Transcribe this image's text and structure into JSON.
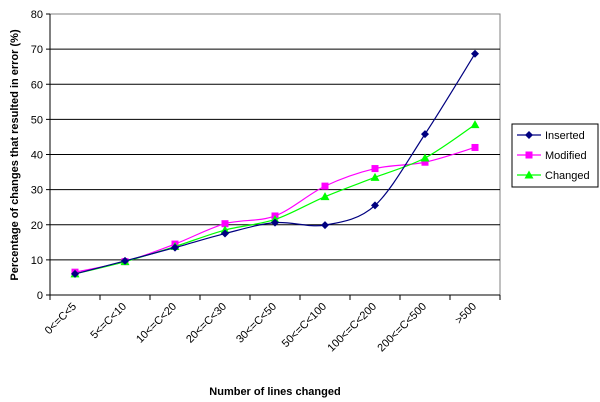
{
  "chart_data": {
    "type": "line",
    "xlabel": "Number of lines changed",
    "ylabel": "Percentage of changes that resulted in error (%)",
    "ylim": [
      0,
      80
    ],
    "yticks": [
      0,
      10,
      20,
      30,
      40,
      50,
      60,
      70,
      80
    ],
    "grid": "horizontal",
    "legend_position": "right",
    "categories": [
      "0<=C<5",
      "5<=C<10",
      "10<=C<20",
      "20<=C<30",
      "30<=C<50",
      "50<=C<100",
      "100<=C<200",
      "200<=C<500",
      ">500"
    ],
    "series": [
      {
        "name": "Inserted",
        "color": "#000080",
        "marker": "diamond",
        "values": [
          6.0,
          9.7,
          13.5,
          17.5,
          20.6,
          19.9,
          25.5,
          45.8,
          68.7
        ]
      },
      {
        "name": "Modified",
        "color": "#FF00FF",
        "marker": "square",
        "values": [
          6.5,
          9.5,
          14.5,
          20.3,
          22.5,
          31.0,
          36.0,
          37.8,
          42.0
        ]
      },
      {
        "name": "Changed",
        "color": "#00FF00",
        "marker": "triangle",
        "values": [
          6.0,
          9.5,
          13.8,
          18.5,
          21.5,
          28.0,
          33.5,
          39.0,
          48.5
        ]
      }
    ]
  }
}
